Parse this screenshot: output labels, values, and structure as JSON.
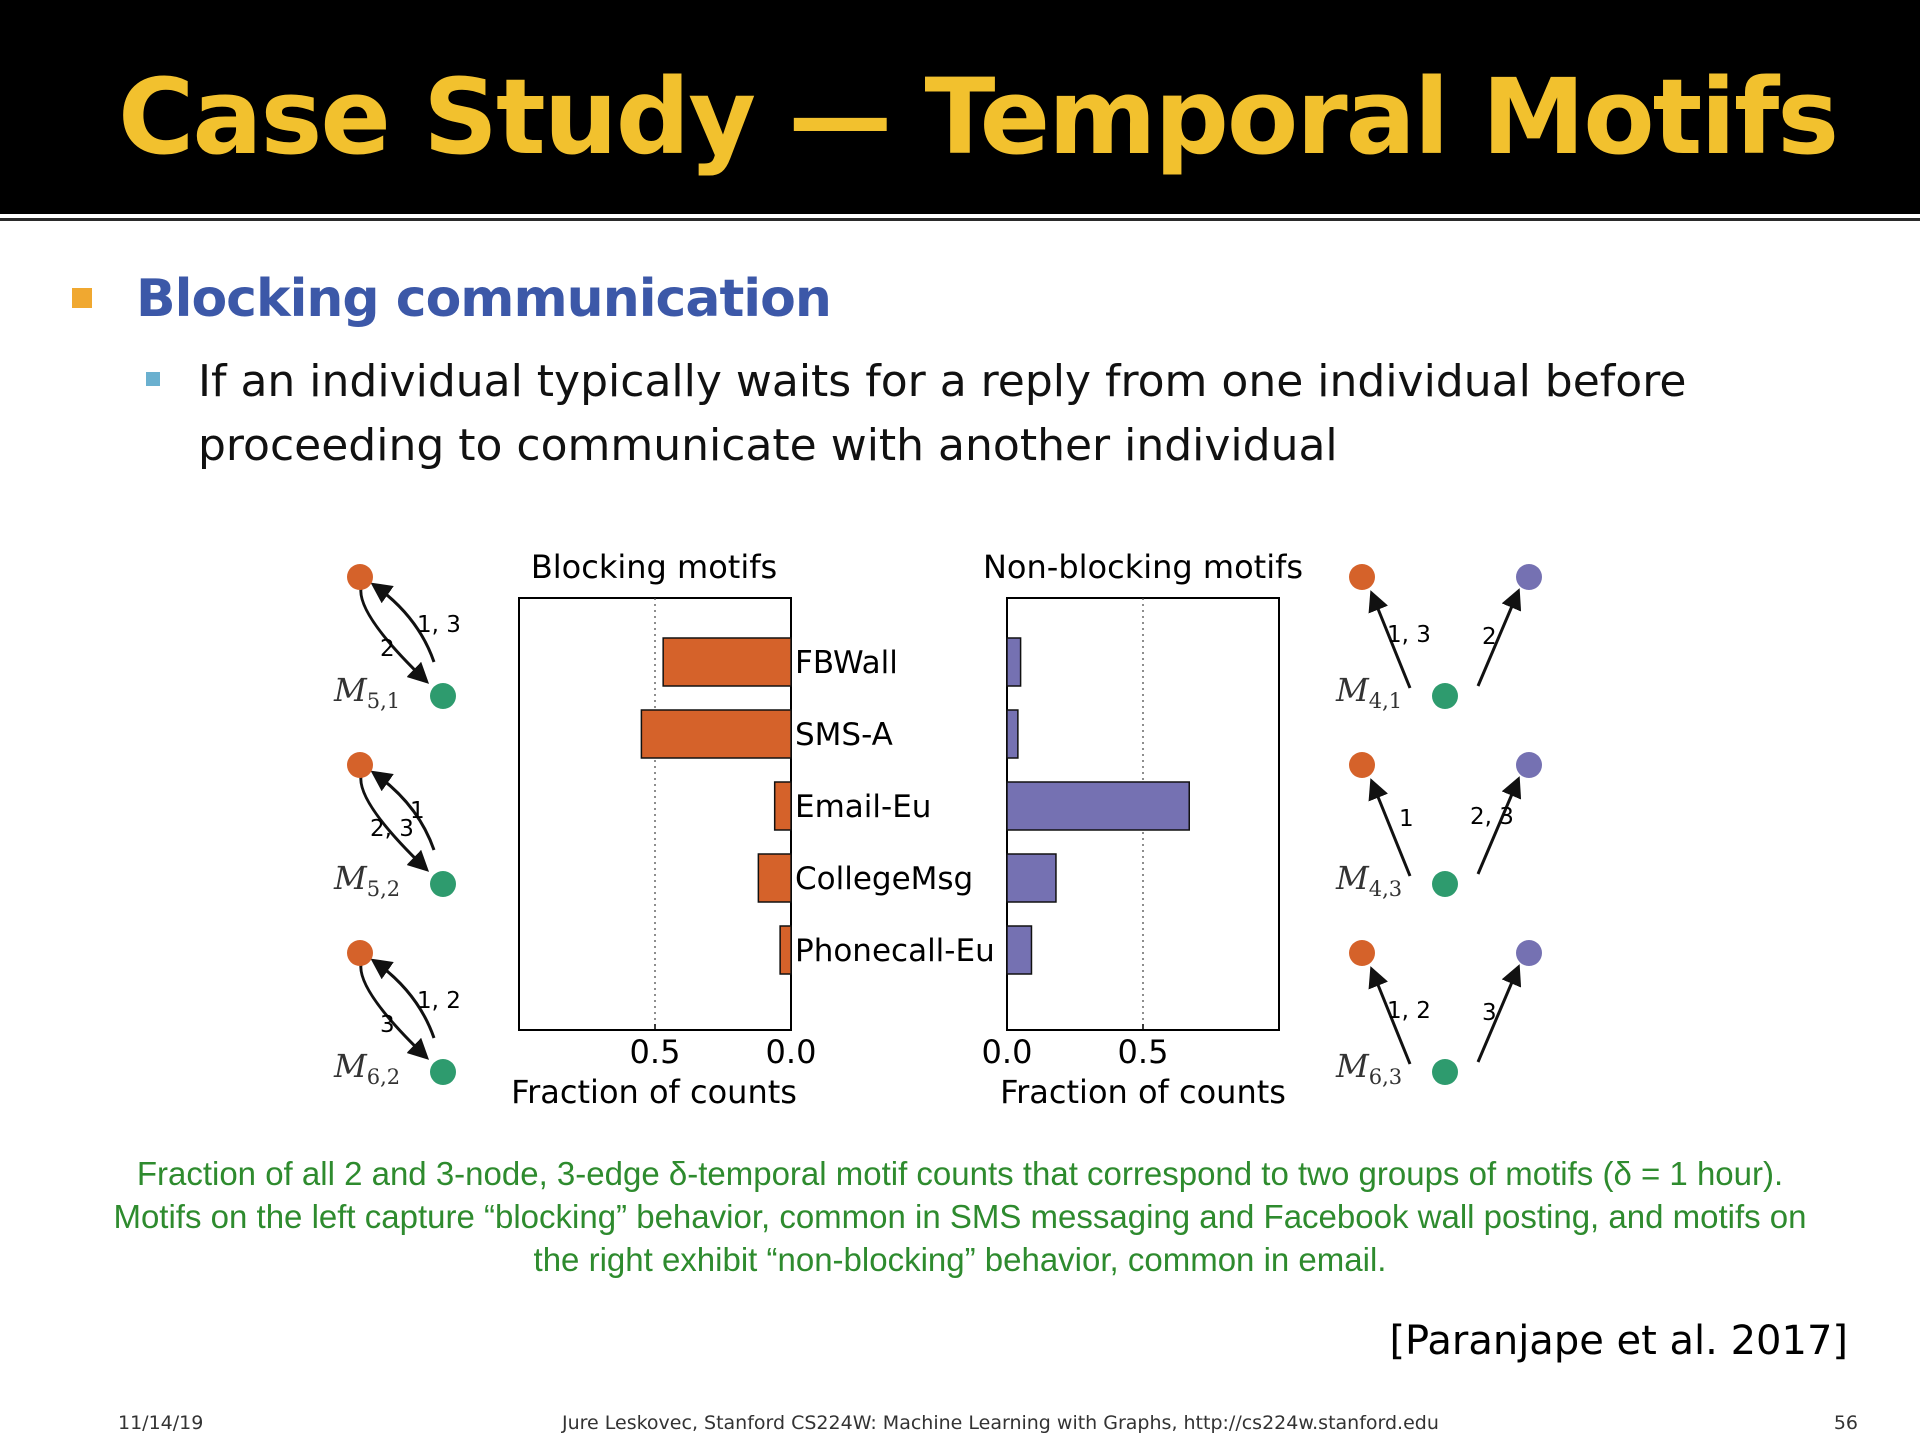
{
  "slide": {
    "title": "Case Study — Temporal Motifs",
    "bullet1": "Blocking communication",
    "bullet2": "If an individual typically waits for a reply from one individual before proceeding to communicate with another individual",
    "caption": "Fraction of all 2 and 3-node, 3-edge δ-temporal motif counts that correspond to two groups of motifs (δ = 1 hour). Motifs on the left capture “blocking” behavior, common in SMS messaging and Facebook wall posting, and motifs on the right exhibit “non-blocking” behavior, common in email.",
    "citation": "[Paranjape et al. 2017]",
    "footer": {
      "date": "11/14/19",
      "center": "Jure Leskovec, Stanford CS224W: Machine Learning with Graphs, http://cs224w.stanford.edu",
      "page": "56"
    }
  },
  "colors": {
    "title": "#F2C12E",
    "bullet1": "#3C58A8",
    "bullet1_marker": "#F0A830",
    "bullet2_marker": "#6AB0CF",
    "blocking": "#D5622A",
    "nonblocking": "#7571B2",
    "node_orange": "#D5622A",
    "node_green": "#2E9B6E",
    "node_purple": "#7571B2",
    "caption": "#2E8B2E"
  },
  "chart_data": [
    {
      "type": "bar",
      "orientation": "horizontal",
      "direction": "reversed",
      "title": "Blocking motifs",
      "xlabel": "Fraction of counts",
      "categories": [
        "FBWall",
        "SMS-A",
        "Email-Eu",
        "CollegeMsg",
        "Phonecall-Eu"
      ],
      "values": [
        0.47,
        0.55,
        0.06,
        0.12,
        0.04
      ],
      "xlim": [
        0,
        1
      ],
      "xticks": [
        "0.5",
        "0.0"
      ],
      "reference_line": 0.5,
      "color": "#D5622A"
    },
    {
      "type": "bar",
      "orientation": "horizontal",
      "title": "Non-blocking motifs",
      "xlabel": "Fraction of counts",
      "categories": [
        "FBWall",
        "SMS-A",
        "Email-Eu",
        "CollegeMsg",
        "Phonecall-Eu"
      ],
      "values": [
        0.05,
        0.04,
        0.67,
        0.18,
        0.09
      ],
      "xlim": [
        0,
        1
      ],
      "xticks": [
        "0.0",
        "0.5"
      ],
      "reference_line": 0.5,
      "color": "#7571B2"
    }
  ],
  "motifs": {
    "blocking": [
      {
        "base": "M",
        "sub": "5,1",
        "label_up": "1, 3",
        "label_down": "2"
      },
      {
        "base": "M",
        "sub": "5,2",
        "label_up": "1",
        "label_down": "2, 3"
      },
      {
        "base": "M",
        "sub": "6,2",
        "label_up": "1, 2",
        "label_down": "3"
      }
    ],
    "nonblocking": [
      {
        "base": "M",
        "sub": "4,1",
        "label_left": "1, 3",
        "label_right": "2"
      },
      {
        "base": "M",
        "sub": "4,3",
        "label_left": "1",
        "label_right": "2, 3"
      },
      {
        "base": "M",
        "sub": "6,3",
        "label_left": "1, 2",
        "label_right": "3"
      }
    ]
  }
}
